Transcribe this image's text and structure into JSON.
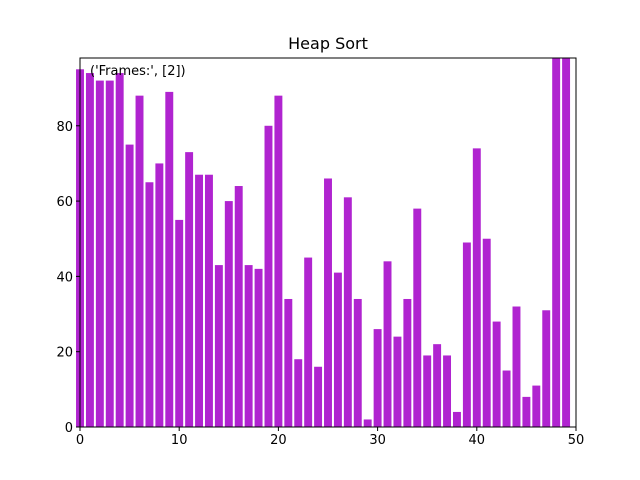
{
  "chart_data": {
    "type": "bar",
    "title": "Heap Sort",
    "annotation": "('Frames:', [2])",
    "xlabel": "",
    "ylabel": "",
    "xlim": [
      0,
      50
    ],
    "ylim": [
      0,
      98
    ],
    "x_ticks": [
      0,
      10,
      20,
      30,
      40,
      50
    ],
    "y_ticks": [
      0,
      20,
      40,
      60,
      80
    ],
    "bar_color": "#b024d0",
    "grid": false,
    "x": [
      0,
      1,
      2,
      3,
      4,
      5,
      6,
      7,
      8,
      9,
      10,
      11,
      12,
      13,
      14,
      15,
      16,
      17,
      18,
      19,
      20,
      21,
      22,
      23,
      24,
      25,
      26,
      27,
      28,
      29,
      30,
      31,
      32,
      33,
      34,
      35,
      36,
      37,
      38,
      39,
      40,
      41,
      42,
      43,
      44,
      45,
      46,
      47,
      48,
      49
    ],
    "values": [
      95,
      94,
      92,
      92,
      94,
      75,
      88,
      65,
      70,
      89,
      55,
      73,
      67,
      67,
      43,
      60,
      64,
      43,
      42,
      80,
      88,
      34,
      18,
      45,
      16,
      66,
      41,
      61,
      34,
      2,
      26,
      44,
      24,
      34,
      58,
      19,
      22,
      19,
      4,
      49,
      74,
      50,
      28,
      15,
      32,
      8,
      11,
      31,
      98,
      98
    ]
  }
}
